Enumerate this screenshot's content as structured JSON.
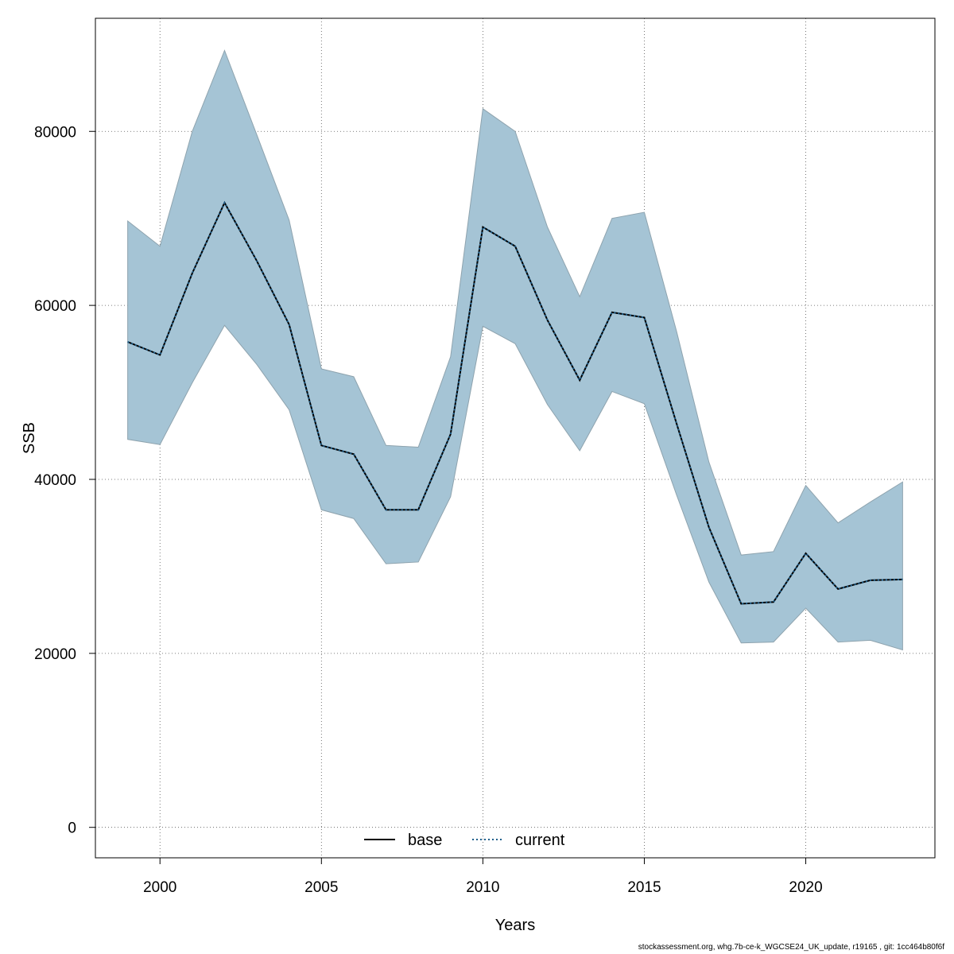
{
  "chart_data": {
    "type": "area",
    "xlabel": "Years",
    "ylabel": "SSB",
    "xlim": [
      1998,
      2024
    ],
    "ylim": [
      -3500,
      93000
    ],
    "x_ticks": [
      2000,
      2005,
      2010,
      2015,
      2020
    ],
    "y_ticks": [
      0,
      20000,
      40000,
      60000,
      80000
    ],
    "grid": true,
    "legend_position": "bottom-center",
    "x": [
      1999,
      2000,
      2001,
      2002,
      2003,
      2004,
      2005,
      2006,
      2007,
      2008,
      2009,
      2010,
      2011,
      2012,
      2013,
      2014,
      2015,
      2016,
      2017,
      2018,
      2019,
      2020,
      2021,
      2022,
      2023
    ],
    "band": {
      "color": "#a5c4d5",
      "upper": [
        69700,
        66800,
        80000,
        89300,
        79600,
        69800,
        52700,
        51800,
        43900,
        43700,
        54100,
        82600,
        80000,
        69000,
        61000,
        70000,
        70700,
        57000,
        42000,
        31300,
        31700,
        39300,
        35000,
        37400,
        39700
      ],
      "lower": [
        44600,
        44000,
        51100,
        57700,
        53200,
        48000,
        36500,
        35500,
        30300,
        30500,
        38000,
        57600,
        55600,
        48600,
        43300,
        50100,
        48700,
        38200,
        28200,
        21200,
        21300,
        25200,
        21300,
        21500,
        20400
      ]
    },
    "series": [
      {
        "name": "base",
        "color": "#000000",
        "style": "solid",
        "values": [
          55800,
          54300,
          63700,
          71800,
          65100,
          57800,
          43900,
          42900,
          36500,
          36500,
          45200,
          69000,
          66800,
          58300,
          51400,
          59200,
          58600,
          46400,
          34500,
          25700,
          25900,
          31500,
          27400,
          28400,
          28500
        ]
      },
      {
        "name": "current",
        "color": "#1f5f8b",
        "style": "dotted",
        "values": [
          55800,
          54300,
          63700,
          71800,
          65100,
          57800,
          43900,
          42900,
          36500,
          36500,
          45200,
          69000,
          66800,
          58300,
          51400,
          59200,
          58600,
          46400,
          34500,
          25700,
          25900,
          31500,
          27400,
          28400,
          28500
        ]
      }
    ]
  },
  "footer": "stockassessment.org, whg.7b-ce-k_WGCSE24_UK_update, r19165 , git: 1cc464b80f6f"
}
